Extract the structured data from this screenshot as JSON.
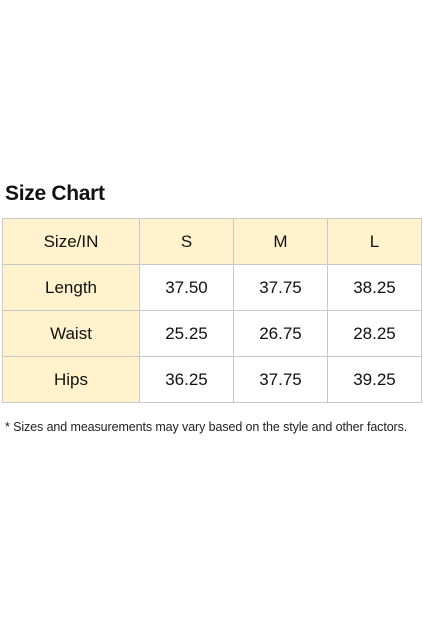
{
  "title": "Size Chart",
  "table": {
    "header": [
      "Size/IN",
      "S",
      "M",
      "L"
    ],
    "rows": [
      {
        "label": "Length",
        "values": [
          "37.50",
          "37.75",
          "38.25"
        ]
      },
      {
        "label": "Waist",
        "values": [
          "25.25",
          "26.75",
          "28.25"
        ]
      },
      {
        "label": "Hips",
        "values": [
          "36.25",
          "37.75",
          "39.25"
        ]
      }
    ]
  },
  "note": "* Sizes and measurements may vary based on the style and other factors.",
  "colors": {
    "header_fill": "#fff2cc",
    "border": "#c9c9c9",
    "background": "#ffffff"
  }
}
